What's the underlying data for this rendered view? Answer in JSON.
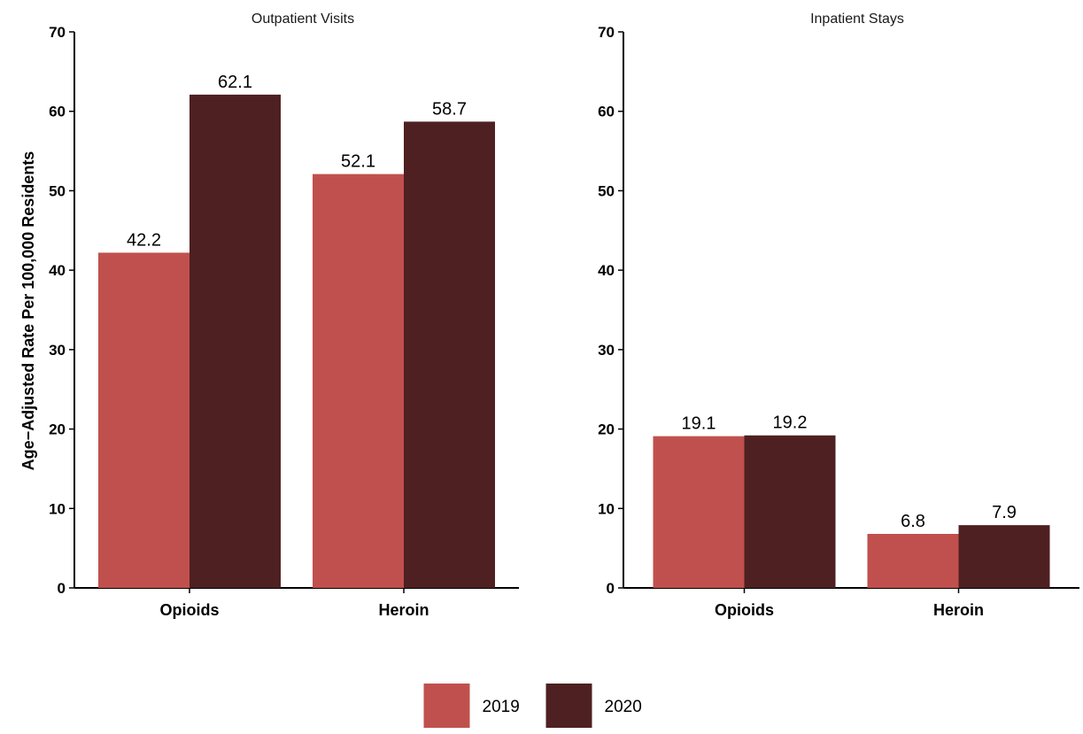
{
  "chart_data": {
    "ylabel": "Age−Adjusted Rate Per 100,000 Residents",
    "ylim": [
      0,
      70
    ],
    "yticks": [
      0,
      10,
      20,
      30,
      40,
      50,
      60,
      70
    ],
    "legend": {
      "placement": "bottom-center",
      "entries": [
        {
          "label": "2019",
          "color": "#c0504d"
        },
        {
          "label": "2020",
          "color": "#4e2021"
        }
      ]
    },
    "panels": [
      {
        "type": "bar",
        "title": "Outpatient Visits",
        "categories": [
          "Opioids",
          "Heroin"
        ],
        "series": [
          {
            "name": "2019",
            "color": "#c0504d",
            "values": [
              42.2,
              52.1
            ],
            "labels": [
              "42.2",
              "52.1"
            ]
          },
          {
            "name": "2020",
            "color": "#4e2021",
            "values": [
              62.1,
              58.7
            ],
            "labels": [
              "62.1",
              "58.7"
            ]
          }
        ]
      },
      {
        "type": "bar",
        "title": "Inpatient Stays",
        "categories": [
          "Opioids",
          "Heroin"
        ],
        "series": [
          {
            "name": "2019",
            "color": "#c0504d",
            "values": [
              19.1,
              6.8
            ],
            "labels": [
              "19.1",
              "6.8"
            ]
          },
          {
            "name": "2020",
            "color": "#4e2021",
            "values": [
              19.2,
              7.9
            ],
            "labels": [
              "19.2",
              "7.9"
            ]
          }
        ]
      }
    ]
  }
}
